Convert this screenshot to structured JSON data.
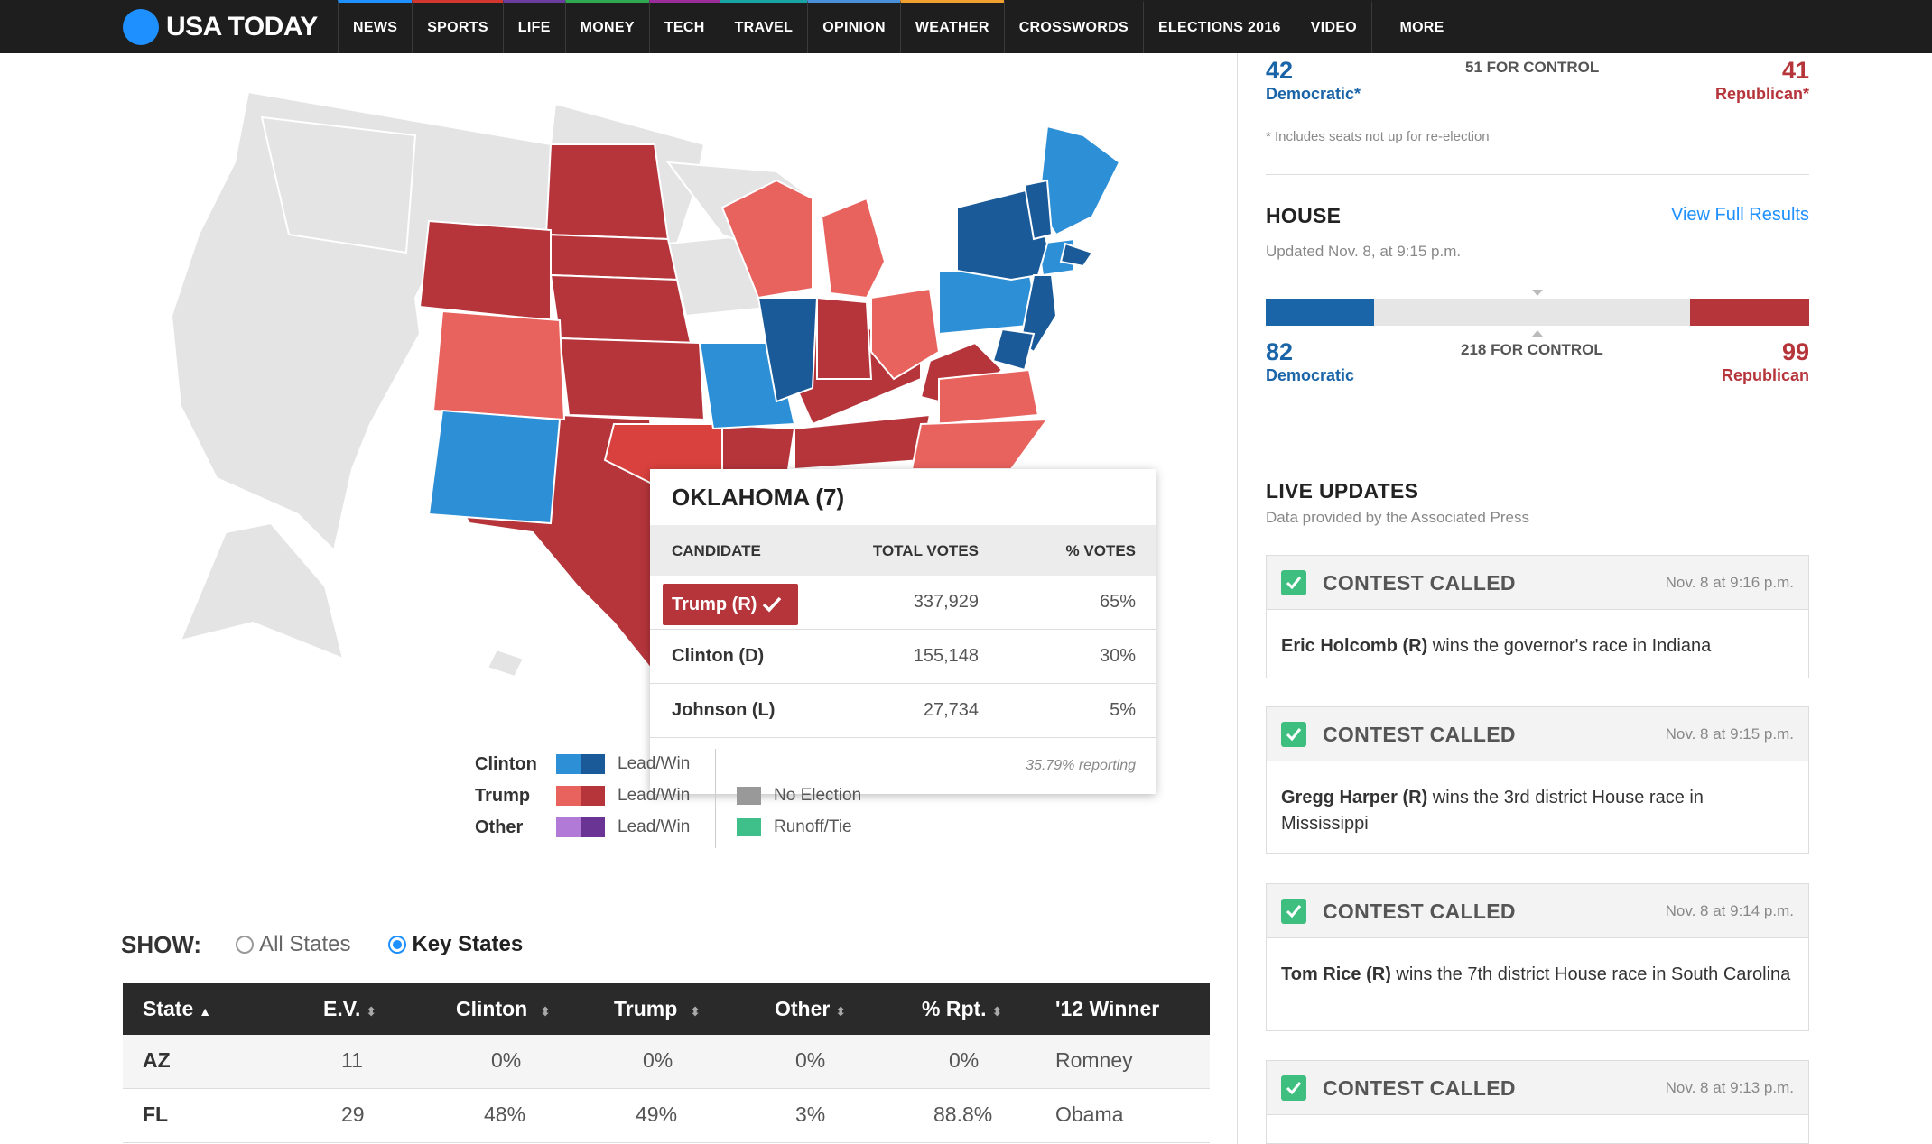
{
  "nav": {
    "logo": "USA TODAY",
    "items": [
      {
        "label": "NEWS",
        "color": "#1e90ff"
      },
      {
        "label": "SPORTS",
        "color": "#d1362f"
      },
      {
        "label": "LIFE",
        "color": "#6a3ea1"
      },
      {
        "label": "MONEY",
        "color": "#2fa84f"
      },
      {
        "label": "TECH",
        "color": "#9b2d9b"
      },
      {
        "label": "TRAVEL",
        "color": "#1aa3a3"
      },
      {
        "label": "OPINION",
        "color": "#4a8fd9"
      },
      {
        "label": "WEATHER",
        "color": "#f0a030"
      },
      {
        "label": "CROSSWORDS",
        "color": ""
      },
      {
        "label": "ELECTIONS 2016",
        "color": ""
      },
      {
        "label": "VIDEO",
        "color": ""
      },
      {
        "label": "MORE",
        "color": ""
      }
    ]
  },
  "tooltip": {
    "title": "OKLAHOMA (7)",
    "headers": {
      "candidate": "CANDIDATE",
      "votes": "TOTAL VOTES",
      "pct": "% VOTES"
    },
    "rows": [
      {
        "candidate": "Trump (R)",
        "votes": "337,929",
        "pct": "65%",
        "winner": true
      },
      {
        "candidate": "Clinton (D)",
        "votes": "155,148",
        "pct": "30%",
        "winner": false
      },
      {
        "candidate": "Johnson (L)",
        "votes": "27,734",
        "pct": "5%",
        "winner": false
      }
    ],
    "reporting": "35.79% reporting"
  },
  "legend": {
    "rows": [
      {
        "name": "Clinton",
        "label": "Lead/Win",
        "colors": [
          "#2d8fd5",
          "#1a5a99"
        ]
      },
      {
        "name": "Trump",
        "label": "Lead/Win",
        "colors": [
          "#e8625e",
          "#b5353b"
        ]
      },
      {
        "name": "Other",
        "label": "Lead/Win",
        "colors": [
          "#b07ad6",
          "#6a3494"
        ]
      }
    ],
    "extra": [
      {
        "label": "No Election",
        "color": "#999999"
      },
      {
        "label": "Runoff/Tie",
        "color": "#3fbf8a"
      }
    ]
  },
  "show": {
    "label": "SHOW:",
    "options": [
      {
        "label": "All States",
        "selected": false
      },
      {
        "label": "Key States",
        "selected": true
      }
    ]
  },
  "table": {
    "headers": [
      "State",
      "E.V.",
      "Clinton",
      "Trump",
      "Other",
      "% Rpt.",
      "'12 Winner"
    ],
    "rows": [
      [
        "AZ",
        "11",
        "0%",
        "0%",
        "0%",
        "0%",
        "Romney"
      ],
      [
        "FL",
        "29",
        "48%",
        "49%",
        "3%",
        "88.8%",
        "Obama"
      ]
    ]
  },
  "senate": {
    "dem_count": "42",
    "dem_label": "Democratic*",
    "rep_count": "41",
    "rep_label": "Republican*",
    "control": "51 FOR CONTROL",
    "note": "* Includes seats not up for re-election"
  },
  "house": {
    "title": "HOUSE",
    "link": "View Full Results",
    "updated": "Updated Nov. 8, at 9:15 p.m.",
    "dem_count": "82",
    "dem_label": "Democratic",
    "rep_count": "99",
    "rep_label": "Republican",
    "control": "218 FOR CONTROL",
    "dem_seats": 82,
    "rep_seats": 99,
    "total_seats": 435
  },
  "live": {
    "title": "LIVE UPDATES",
    "subtitle": "Data provided by the Associated Press",
    "updates": [
      {
        "label": "CONTEST CALLED",
        "time": "Nov. 8 at 9:16 p.m.",
        "who": "Eric Holcomb (R)",
        "text": " wins the governor's race in Indiana"
      },
      {
        "label": "CONTEST CALLED",
        "time": "Nov. 8 at 9:15 p.m.",
        "who": "Gregg Harper (R)",
        "text": " wins the 3rd district House race in Mississippi"
      },
      {
        "label": "CONTEST CALLED",
        "time": "Nov. 8 at 9:14 p.m.",
        "who": "Tom Rice (R)",
        "text": " wins the 7th district House race in South Carolina"
      },
      {
        "label": "CONTEST CALLED",
        "time": "Nov. 8 at 9:13 p.m.",
        "who": "",
        "text": ""
      }
    ]
  }
}
